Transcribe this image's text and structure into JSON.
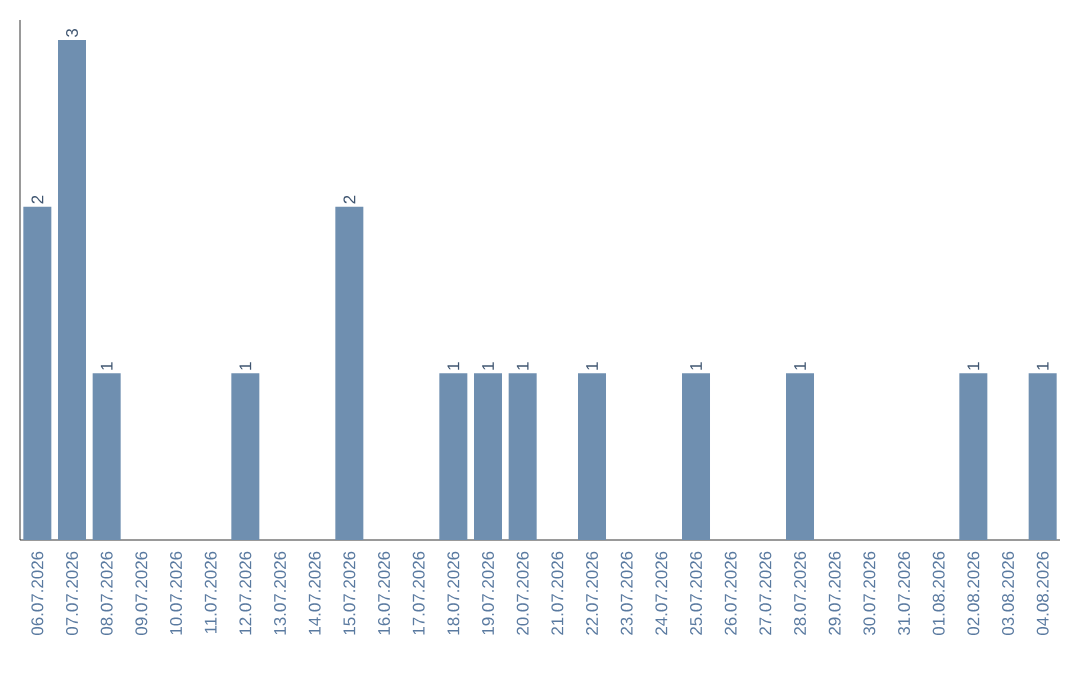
{
  "chart_data": {
    "type": "bar",
    "categories": [
      "06.07.2026",
      "07.07.2026",
      "08.07.2026",
      "09.07.2026",
      "10.07.2026",
      "11.07.2026",
      "12.07.2026",
      "13.07.2026",
      "14.07.2026",
      "15.07.2026",
      "16.07.2026",
      "17.07.2026",
      "18.07.2026",
      "19.07.2026",
      "20.07.2026",
      "21.07.2026",
      "22.07.2026",
      "23.07.2026",
      "24.07.2026",
      "25.07.2026",
      "26.07.2026",
      "27.07.2026",
      "28.07.2026",
      "29.07.2026",
      "30.07.2026",
      "31.07.2026",
      "01.08.2026",
      "02.08.2026",
      "03.08.2026",
      "04.08.2026"
    ],
    "values": [
      2,
      3,
      1,
      0,
      0,
      0,
      1,
      0,
      0,
      2,
      0,
      0,
      1,
      1,
      1,
      0,
      1,
      0,
      0,
      1,
      0,
      0,
      1,
      0,
      0,
      0,
      0,
      1,
      0,
      1
    ],
    "value_labels": [
      "2",
      "3",
      "1",
      null,
      null,
      null,
      "1",
      null,
      null,
      "2",
      null,
      null,
      "1",
      "1",
      "1",
      null,
      "1",
      null,
      null,
      "1",
      null,
      null,
      "1",
      null,
      null,
      null,
      null,
      "1",
      null,
      "1"
    ],
    "color": "#6f8fb0",
    "tick_labels": "x",
    "grid": false
  }
}
